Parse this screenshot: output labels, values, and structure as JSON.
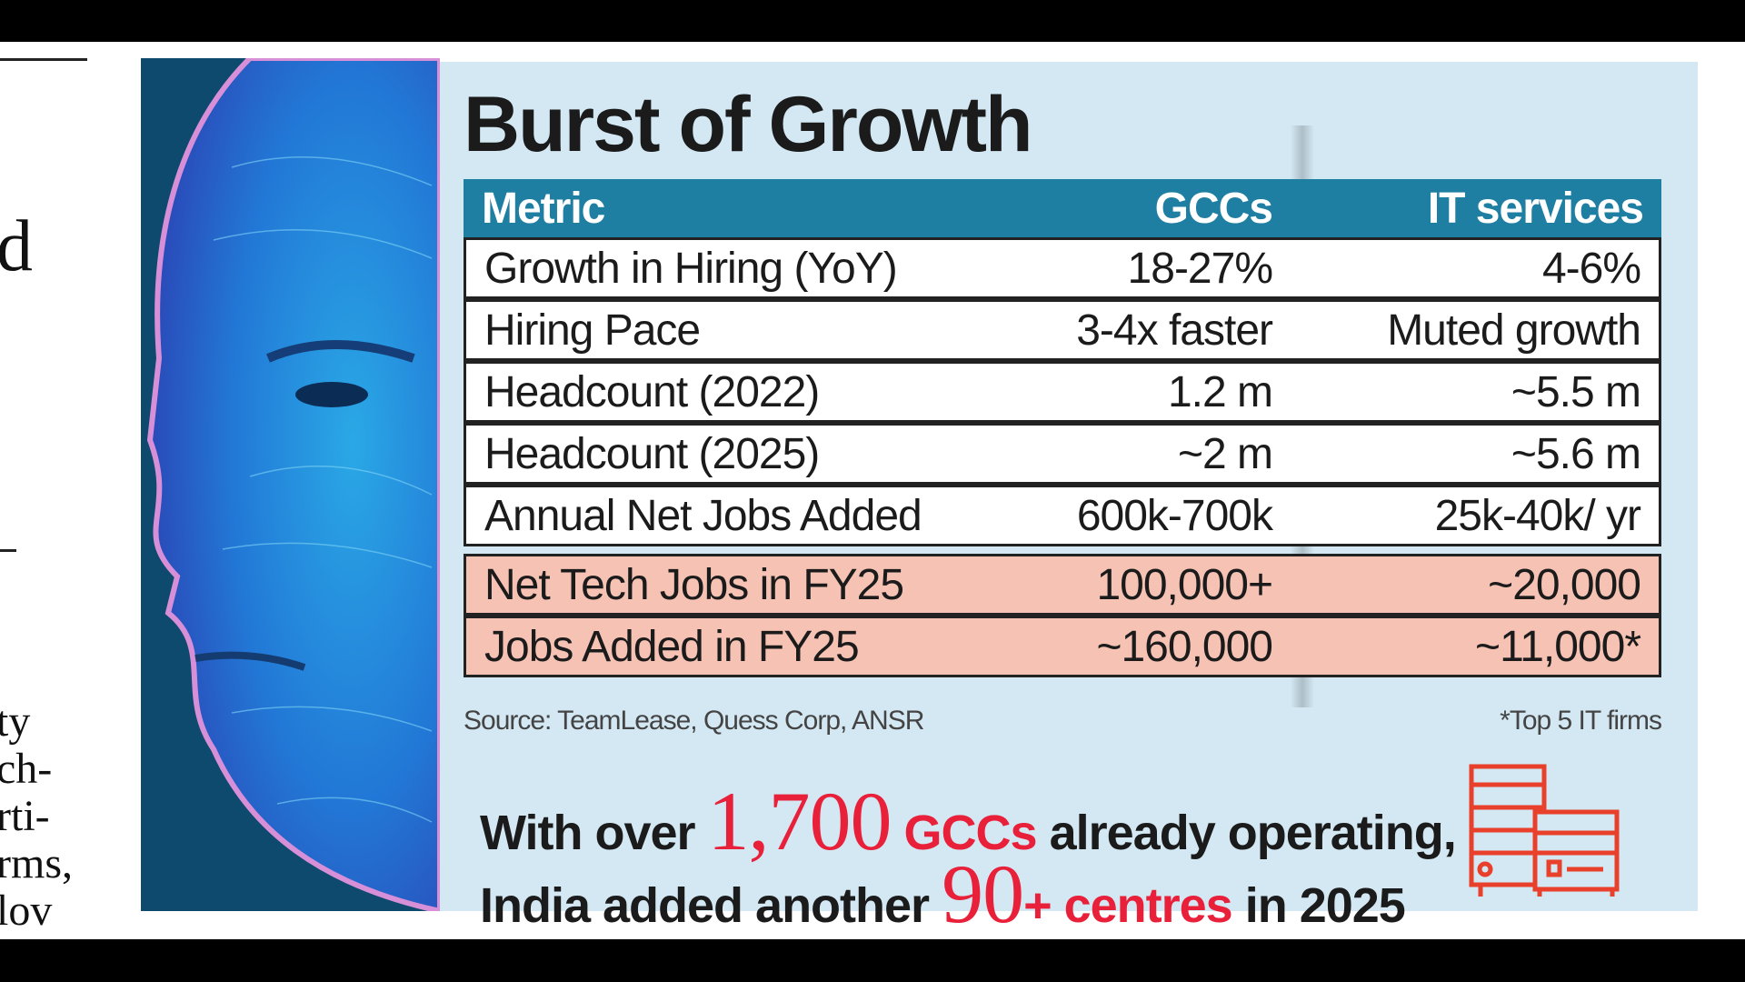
{
  "side_fragments": [
    "d",
    "ty",
    "ch-",
    "rti-",
    "rms,",
    "lov"
  ],
  "infographic": {
    "title": "Burst of Growth",
    "table": {
      "headers": [
        "Metric",
        "GCCs",
        "IT services"
      ],
      "rows": [
        {
          "metric": "Growth in Hiring (YoY)",
          "gccs": "18-27%",
          "it": "4-6%",
          "highlight": false
        },
        {
          "metric": "Hiring Pace",
          "gccs": "3-4x faster",
          "it": "Muted growth",
          "highlight": false
        },
        {
          "metric": "Headcount (2022)",
          "gccs": "1.2 m",
          "it": "~5.5 m",
          "highlight": false
        },
        {
          "metric": "Headcount (2025)",
          "gccs": "~2 m",
          "it": "~5.6 m",
          "highlight": false
        },
        {
          "metric": "Annual Net Jobs Added",
          "gccs": "600k-700k",
          "it": "25k-40k/ yr",
          "highlight": false
        },
        {
          "metric": "Net Tech Jobs in FY25",
          "gccs": "100,000+",
          "it": "~20,000",
          "highlight": true
        },
        {
          "metric": "Jobs Added in FY25",
          "gccs": "~160,000",
          "it": "~11,000*",
          "highlight": true
        }
      ]
    },
    "source": "Source: TeamLease, Quess Corp, ANSR",
    "footnote": "*Top 5 IT firms",
    "tagline": {
      "l1_a": "With over ",
      "l1_num": "1,700",
      "l1_b": " GCCs",
      "l1_c": " already operating,",
      "l2_a": "India added another ",
      "l2_num": "90",
      "l2_b": "+ centres",
      "l2_c": " in 2025"
    },
    "icon": "server-buildings-icon",
    "colors": {
      "header": "#1f7fa3",
      "panel": "#d3e8f3",
      "highlight": "#f5c2b4",
      "accent": "#e8203a"
    }
  }
}
